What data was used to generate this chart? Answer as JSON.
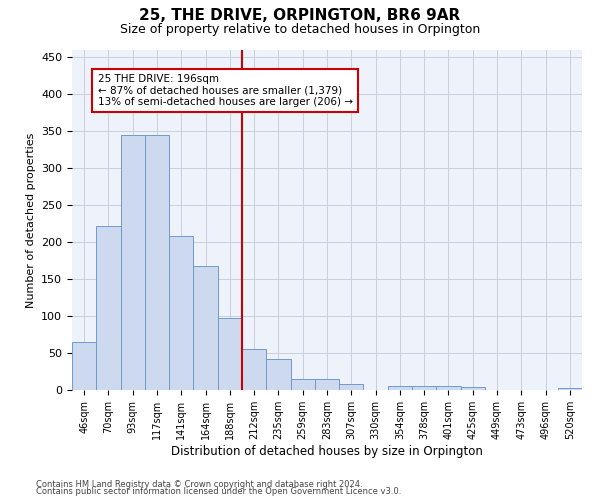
{
  "title": "25, THE DRIVE, ORPINGTON, BR6 9AR",
  "subtitle": "Size of property relative to detached houses in Orpington",
  "xlabel": "Distribution of detached houses by size in Orpington",
  "ylabel": "Number of detached properties",
  "categories": [
    "46sqm",
    "70sqm",
    "93sqm",
    "117sqm",
    "141sqm",
    "164sqm",
    "188sqm",
    "212sqm",
    "235sqm",
    "259sqm",
    "283sqm",
    "307sqm",
    "330sqm",
    "354sqm",
    "378sqm",
    "401sqm",
    "425sqm",
    "449sqm",
    "473sqm",
    "496sqm",
    "520sqm"
  ],
  "values": [
    65,
    222,
    345,
    345,
    208,
    168,
    97,
    56,
    42,
    15,
    15,
    8,
    0,
    6,
    6,
    5,
    4,
    0,
    0,
    0,
    3
  ],
  "bar_color": "#ccd9ee",
  "bar_edge_color": "#7099cc",
  "vline_color": "#cc0000",
  "annotation_text": "25 THE DRIVE: 196sqm\n← 87% of detached houses are smaller (1,379)\n13% of semi-detached houses are larger (206) →",
  "annotation_box_color": "#cc0000",
  "ylim": [
    0,
    460
  ],
  "yticks": [
    0,
    50,
    100,
    150,
    200,
    250,
    300,
    350,
    400,
    450
  ],
  "footer1": "Contains HM Land Registry data © Crown copyright and database right 2024.",
  "footer2": "Contains public sector information licensed under the Open Government Licence v3.0.",
  "background_color": "#eef2fb",
  "grid_color": "#c8cedd",
  "title_fontsize": 11,
  "subtitle_fontsize": 9,
  "bar_width": 1.0
}
